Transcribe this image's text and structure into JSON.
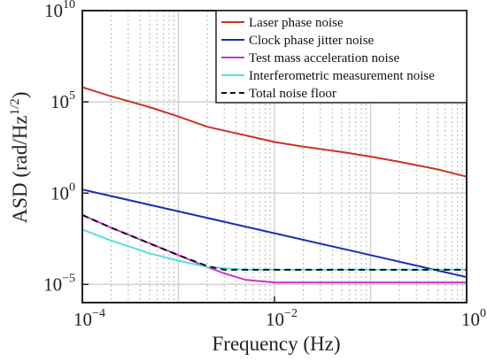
{
  "chart_data": {
    "type": "line",
    "title": "",
    "xlabel": "Frequency (Hz)",
    "ylabel": "ASD (rad/Hz",
    "ylabel_exponent": "1/2",
    "ylabel_close": ")",
    "x_scale": "log",
    "y_scale": "log",
    "xlim": [
      0.0001,
      1
    ],
    "ylim": [
      1e-06,
      10000000000
    ],
    "x_ticks": [
      {
        "value": 0.0001,
        "base": "10",
        "exp": "−4"
      },
      {
        "value": 0.01,
        "base": "10",
        "exp": "−2"
      },
      {
        "value": 1,
        "base": "10",
        "exp": "0"
      }
    ],
    "y_ticks": [
      {
        "value": 1e-05,
        "base": "10",
        "exp": "−5"
      },
      {
        "value": 1,
        "base": "10",
        "exp": "0"
      },
      {
        "value": 100000,
        "base": "10",
        "exp": "5"
      },
      {
        "value": 10000000000,
        "base": "10",
        "exp": "10"
      }
    ],
    "grid": true,
    "legend_position": "top-right",
    "series": [
      {
        "name": "Laser phase noise",
        "color": "#cc3322",
        "dash": "solid",
        "x": [
          0.0001,
          0.0002,
          0.0005,
          0.001,
          0.002,
          0.005,
          0.01,
          0.02,
          0.05,
          0.1,
          0.2,
          0.5,
          1
        ],
        "y": [
          631000,
          200000,
          52000,
          15800,
          4300,
          1450,
          631,
          355,
          178,
          100,
          52,
          20,
          7.9
        ]
      },
      {
        "name": "Clock phase jitter noise",
        "color": "#1a2db0",
        "dash": "solid",
        "x": [
          0.0001,
          0.001,
          0.01,
          0.1,
          1
        ],
        "y": [
          1.58,
          0.1,
          0.0063,
          0.0004,
          2.5e-05
        ]
      },
      {
        "name": "Test mass acceleration noise",
        "color": "#cc33cc",
        "dash": "solid",
        "x": [
          0.0001,
          0.0002,
          0.0005,
          0.001,
          0.002,
          0.003,
          0.005,
          0.01,
          0.1,
          1
        ],
        "y": [
          0.063,
          0.0126,
          0.00178,
          0.000398,
          8.9e-05,
          3.98e-05,
          1.78e-05,
          1.26e-05,
          1.26e-05,
          1.26e-05
        ]
      },
      {
        "name": "Interferometric measurement noise",
        "color": "#55e0e0",
        "dash": "solid",
        "x": [
          0.0001,
          0.0002,
          0.0005,
          0.001,
          0.002,
          0.005,
          0.01,
          0.1,
          1
        ],
        "y": [
          0.01,
          0.00251,
          0.0005,
          0.000199,
          8.91e-05,
          6.31e-05,
          6.31e-05,
          6.31e-05,
          6.31e-05
        ]
      },
      {
        "name": "Total noise floor",
        "color": "#111111",
        "dash": "dashed",
        "x": [
          0.0001,
          0.0002,
          0.0005,
          0.001,
          0.002,
          0.003,
          0.005,
          0.01,
          0.1,
          1
        ],
        "y": [
          0.063,
          0.0126,
          0.00178,
          0.0004,
          0.0001,
          6.31e-05,
          6.31e-05,
          6.31e-05,
          6.31e-05,
          6.31e-05
        ]
      }
    ]
  }
}
